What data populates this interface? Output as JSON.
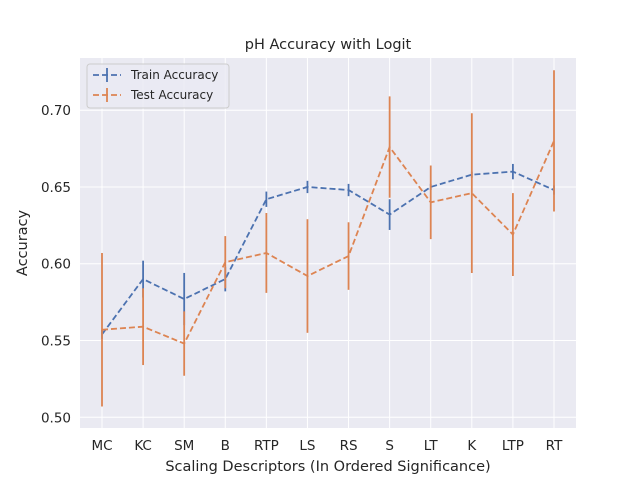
{
  "chart_data": {
    "type": "line",
    "title": "pH Accuracy with Logit",
    "xlabel": "Scaling Descriptors (In Ordered Significance)",
    "ylabel": "Accuracy",
    "categories": [
      "MC",
      "KC",
      "SM",
      "B",
      "RTP",
      "LS",
      "RS",
      "S",
      "LT",
      "K",
      "LTP",
      "RT"
    ],
    "ylim": [
      0.493,
      0.734
    ],
    "yticks": [
      0.5,
      0.55,
      0.6,
      0.65,
      0.7
    ],
    "ytick_labels": [
      "0.50",
      "0.55",
      "0.60",
      "0.65",
      "0.70"
    ],
    "grid": true,
    "legend_position": "top-left",
    "series": [
      {
        "name": "Train Accuracy",
        "color": "#4c72b0",
        "values": [
          0.554,
          0.59,
          0.577,
          0.59,
          0.642,
          0.65,
          0.648,
          0.632,
          0.65,
          0.658,
          0.66,
          0.648
        ],
        "errors": [
          0.003,
          0.012,
          0.017,
          0.008,
          0.005,
          0.004,
          0.004,
          0.01,
          0.002,
          0.002,
          0.005,
          0.003
        ]
      },
      {
        "name": "Test Accuracy",
        "color": "#dd8452",
        "values": [
          0.557,
          0.559,
          0.548,
          0.601,
          0.607,
          0.592,
          0.605,
          0.676,
          0.64,
          0.646,
          0.619,
          0.68
        ],
        "errors": [
          0.05,
          0.025,
          0.021,
          0.017,
          0.026,
          0.037,
          0.022,
          0.033,
          0.024,
          0.052,
          0.027,
          0.046
        ]
      }
    ]
  }
}
